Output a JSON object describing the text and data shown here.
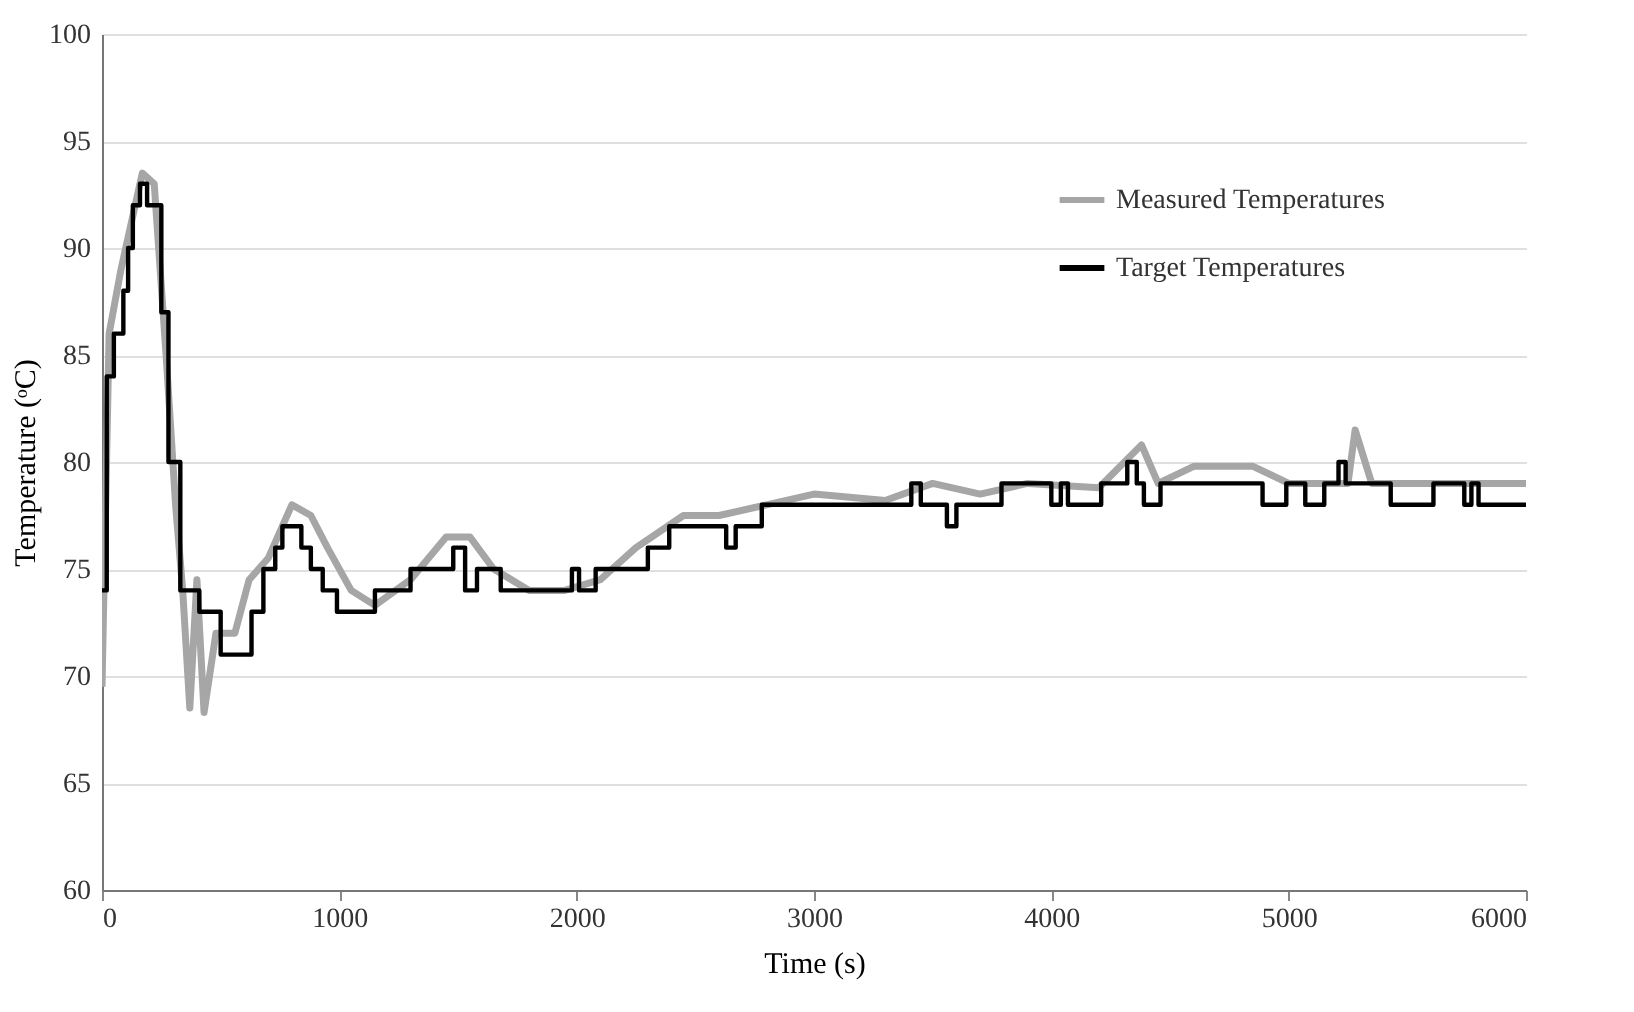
{
  "chart_data": {
    "type": "line",
    "xlabel": "Time (s)",
    "ylabel": "Temperature (ᵒC)",
    "xlim": [
      0,
      6000
    ],
    "xticks": [
      0,
      1000,
      2000,
      3000,
      4000,
      5000,
      6000
    ],
    "ylim": [
      60,
      100
    ],
    "yticks": [
      60,
      65,
      70,
      75,
      80,
      85,
      90,
      95,
      100
    ],
    "grid": "y",
    "legend": "top right",
    "series": [
      {
        "name": "Measured Temperatures",
        "color": "#a6a6a6",
        "x": [
          0,
          30,
          80,
          170,
          220,
          270,
          310,
          340,
          370,
          400,
          430,
          480,
          560,
          620,
          700,
          800,
          880,
          950,
          1050,
          1150,
          1300,
          1450,
          1550,
          1650,
          1800,
          1950,
          2100,
          2250,
          2450,
          2600,
          2800,
          3000,
          3300,
          3500,
          3700,
          3900,
          4200,
          4380,
          4450,
          4600,
          4850,
          5000,
          5250,
          5280,
          5350,
          6000
        ],
        "values": [
          69.5,
          86,
          89,
          93.5,
          93,
          85,
          78,
          74,
          68.5,
          74.5,
          68.3,
          72,
          72,
          74.5,
          75.5,
          78,
          77.5,
          76,
          74,
          73.3,
          74.5,
          76.5,
          76.5,
          75,
          74,
          74,
          74.5,
          76,
          77.5,
          77.5,
          78,
          78.5,
          78.2,
          79,
          78.5,
          79,
          78.8,
          80.8,
          79,
          79.8,
          79.8,
          79,
          79,
          81.5,
          79,
          79
        ]
      },
      {
        "name": "Target Temperatures",
        "color": "#000000",
        "type": "step",
        "x": [
          0,
          20,
          50,
          90,
          110,
          130,
          160,
          190,
          250,
          280,
          330,
          410,
          500,
          630,
          680,
          730,
          760,
          840,
          880,
          930,
          990,
          1150,
          1300,
          1480,
          1530,
          1580,
          1680,
          1980,
          2010,
          2080,
          2300,
          2390,
          2630,
          2670,
          2780,
          3410,
          3450,
          3560,
          3600,
          3790,
          4000,
          4040,
          4070,
          4210,
          4320,
          4360,
          4390,
          4460,
          4890,
          4990,
          5070,
          5150,
          5210,
          5240,
          5430,
          5610,
          5740,
          5770,
          5800,
          6000
        ],
        "values": [
          74,
          84,
          86,
          88,
          90,
          92,
          93,
          92,
          87,
          80,
          74,
          73,
          71,
          73,
          75,
          76,
          77,
          76,
          75,
          74,
          73,
          74,
          75,
          76,
          74,
          75,
          74,
          75,
          74,
          75,
          76,
          77,
          76,
          77,
          78,
          79,
          78,
          77,
          78,
          79,
          78,
          79,
          78,
          79,
          80,
          79,
          78,
          79,
          78,
          79,
          78,
          79,
          80,
          79,
          78,
          79,
          78,
          79,
          78,
          78
        ]
      }
    ]
  }
}
